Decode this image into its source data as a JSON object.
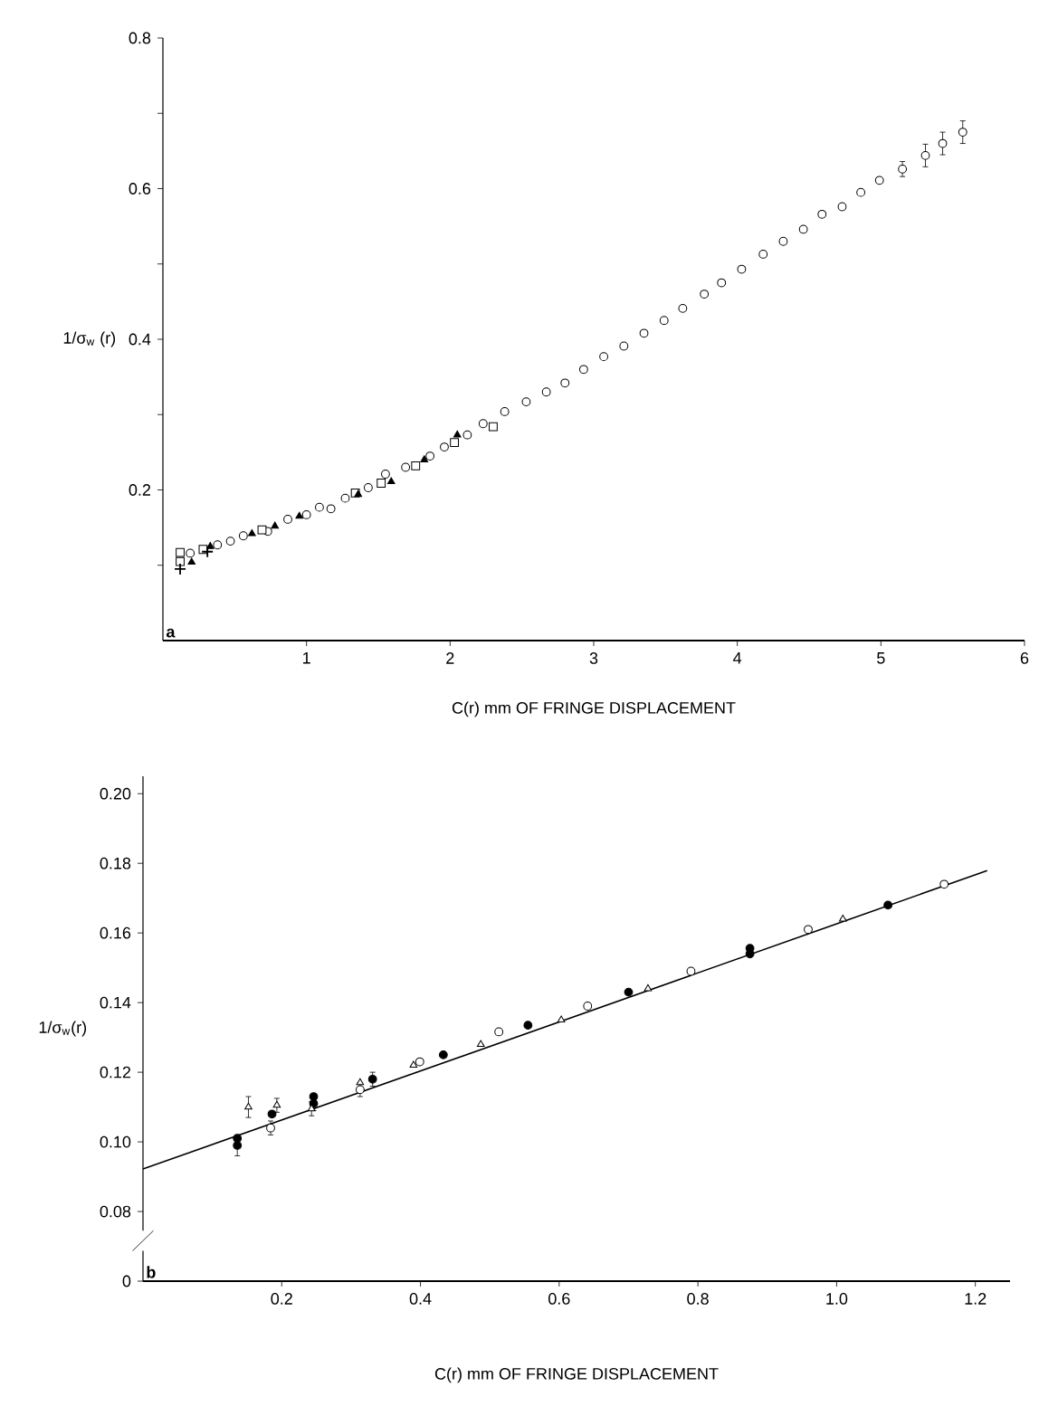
{
  "chart_data": [
    {
      "type": "scatter",
      "xlabel": "C(r) mm OF FRINGE DISPLACEMENT",
      "ylabel": "1/σ$_{w}$ (r)",
      "annotations": [
        "a"
      ],
      "xlim": [
        0,
        6
      ],
      "ylim": [
        0,
        0.8
      ],
      "xticks": [
        1,
        2,
        3,
        4,
        5,
        6
      ],
      "yticks": [
        {
          "value": 0.1,
          "label": null
        },
        0.2,
        {
          "value": 0.3,
          "label": null
        },
        0.4,
        {
          "value": 0.5,
          "label": null
        },
        0.6,
        {
          "value": 0.7,
          "label": null
        },
        0.8
      ],
      "series": [
        {
          "color": "#ffffff",
          "marker": "circle",
          "x": [
            0.19,
            0.38,
            0.47,
            0.56,
            0.73,
            0.87,
            1.0,
            1.09,
            1.17,
            1.27,
            1.43,
            1.55,
            1.69,
            1.86,
            1.96,
            2.12,
            2.23,
            2.38,
            2.53,
            2.67,
            2.8,
            2.93,
            3.07,
            3.21,
            3.35,
            3.49,
            3.62,
            3.77,
            3.89,
            4.03,
            4.18,
            4.32,
            4.46,
            4.59,
            4.73,
            4.86,
            4.99,
            5.15,
            5.31,
            5.43,
            5.57
          ],
          "values": [
            0.116,
            0.127,
            0.132,
            0.139,
            0.145,
            0.161,
            0.167,
            0.177,
            0.175,
            0.189,
            0.203,
            0.221,
            0.23,
            0.245,
            0.257,
            0.273,
            0.288,
            0.304,
            0.317,
            0.33,
            0.342,
            0.36,
            0.377,
            0.391,
            0.408,
            0.425,
            0.441,
            0.46,
            0.475,
            0.493,
            0.513,
            0.53,
            0.546,
            0.566,
            0.576,
            0.595,
            0.611,
            0.626,
            0.644,
            0.66,
            0.675
          ],
          "errors": [
            null,
            null,
            null,
            null,
            null,
            null,
            null,
            null,
            null,
            null,
            null,
            null,
            null,
            null,
            null,
            null,
            null,
            null,
            null,
            null,
            null,
            null,
            null,
            null,
            null,
            null,
            null,
            null,
            null,
            null,
            null,
            null,
            null,
            null,
            null,
            null,
            null,
            0.01,
            0.015,
            0.015,
            0.015
          ]
        },
        {
          "color": "#ffffff",
          "marker": "square",
          "x": [
            0.12,
            0.12,
            0.28,
            0.69,
            1.34,
            1.52,
            1.76,
            2.03,
            2.3
          ],
          "values": [
            0.117,
            0.105,
            0.121,
            0.147,
            0.196,
            0.209,
            0.232,
            0.263,
            0.284
          ]
        },
        {
          "color": "#000000",
          "marker": "triangle",
          "x": [
            0.2,
            0.33,
            0.62,
            0.78,
            0.95,
            1.36,
            1.59,
            1.82,
            2.05
          ],
          "values": [
            0.104,
            0.125,
            0.142,
            0.152,
            0.165,
            0.194,
            0.211,
            0.24,
            0.273
          ]
        },
        {
          "color": "#000000",
          "marker": "cross",
          "x": [
            0.12,
            0.31
          ],
          "values": [
            0.095,
            0.118
          ]
        }
      ]
    },
    {
      "type": "scatter",
      "xlabel": "C(r) mm OF FRINGE DISPLACEMENT",
      "ylabel": "1/σ$_{w}$(r)",
      "annotations": [
        "b"
      ],
      "xlim": [
        0,
        1.25
      ],
      "ylim": [
        0.06,
        0.205
      ],
      "xticks": [
        0.2,
        0.4,
        0.6,
        0.8,
        {
          "value": 1,
          "label": "1.0"
        },
        1.2
      ],
      "yticks": [
        {
          "value": 0.06,
          "label": "0"
        },
        0.08,
        {
          "value": 0.1,
          "label": "0.10"
        },
        0.12,
        0.14,
        0.16,
        0.18,
        {
          "value": 0.2,
          "label": "0.20"
        }
      ],
      "series": [
        {
          "color": "#ffffff",
          "marker": "circle",
          "x": [
            0.184,
            0.313,
            0.399,
            0.513,
            0.641,
            0.79,
            0.959,
            1.155
          ],
          "values": [
            0.104,
            0.115,
            0.123,
            0.1316,
            0.139,
            0.149,
            0.161,
            0.174
          ],
          "errors": [
            0.002,
            0.002,
            null,
            null,
            null,
            null,
            null,
            null
          ]
        },
        {
          "color": "#000000",
          "marker": "circle",
          "x": [
            0.136,
            0.136,
            0.186,
            0.246,
            0.246,
            0.331,
            0.433,
            0.555,
            0.7,
            0.875,
            0.875,
            1.074
          ],
          "values": [
            0.099,
            0.101,
            0.108,
            0.111,
            0.113,
            0.118,
            0.125,
            0.1335,
            0.143,
            0.154,
            0.1556,
            0.168
          ],
          "errors": [
            0.003,
            null,
            null,
            0.002,
            null,
            0.002,
            null,
            null,
            null,
            null,
            null,
            null
          ]
        },
        {
          "color": "#ffffff",
          "marker": "triangle",
          "x": [
            0.152,
            0.193,
            0.243,
            0.313,
            0.39,
            0.487,
            0.603,
            0.728,
            1.009
          ],
          "values": [
            0.11,
            0.1105,
            0.1095,
            0.117,
            0.122,
            0.128,
            0.135,
            0.144,
            0.164
          ],
          "errors": [
            0.003,
            0.002,
            0.002,
            null,
            null,
            null,
            null,
            null,
            null
          ]
        },
        {
          "type": "line",
          "color": "#000000",
          "marker": "none",
          "line_style": "solid",
          "x": [
            0,
            1.217
          ],
          "values": [
            0.0922,
            0.1779
          ]
        }
      ]
    }
  ]
}
